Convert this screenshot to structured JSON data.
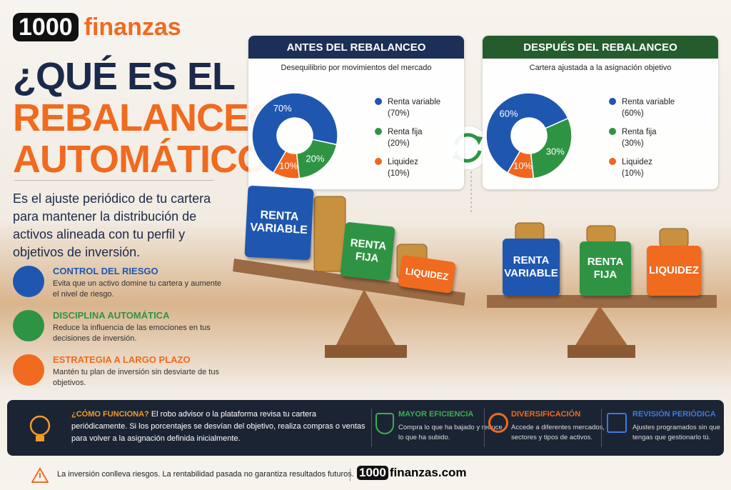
{
  "brand": {
    "number": "1000",
    "word": "finanzas"
  },
  "title": {
    "line1": "¿QUÉ ES EL",
    "line2": "REBALANCEO",
    "line3": "AUTOMÁTICO?"
  },
  "intro": "Es el ajuste periódico de tu cartera para mantener la distribución de activos alineada con tu perfil y objetivos de inversión.",
  "benefits": [
    {
      "title": "CONTROL DEL RIESGO",
      "text": "Evita que un activo domine tu cartera y aumente el nivel de riesgo."
    },
    {
      "title": "DISCIPLINA AUTOMÁTICA",
      "text": "Reduce la influencia de las emociones en tus decisiones de inversión."
    },
    {
      "title": "ESTRATEGIA A LARGO PLAZO",
      "text": "Mantén tu plan de inversión sin desviarte de tus objetivos."
    }
  ],
  "charts": [
    {
      "type": "pie",
      "title": "ANTES DEL REBALANCEO",
      "subtitle": "Desequilibrio por movimientos del mercado",
      "categories": [
        "Renta variable",
        "Renta fija",
        "Liquidez"
      ],
      "values": [
        70,
        20,
        10
      ],
      "value_labels": [
        "70%",
        "20%",
        "10%"
      ],
      "legend_value_labels": [
        "(70%)",
        "(20%)",
        "(10%)"
      ],
      "colors": [
        "#1f57b0",
        "#2e9444",
        "#f0661e"
      ],
      "header_color": "#1b2f57"
    },
    {
      "type": "pie",
      "title": "DESPUÉS DEL REBALANCEO",
      "subtitle": "Cartera ajustada a la asignación objetivo",
      "categories": [
        "Renta variable",
        "Renta fija",
        "Liquidez"
      ],
      "values": [
        60,
        30,
        10
      ],
      "value_labels": [
        "60%",
        "30%",
        "10%"
      ],
      "legend_value_labels": [
        "(60%)",
        "(30%)",
        "(10%)"
      ],
      "colors": [
        "#1f57b0",
        "#2e9444",
        "#f0661e"
      ],
      "header_color": "#245c2e"
    }
  ],
  "blocks": {
    "before": [
      "RENTA VARIABLE",
      "RENTA FIJA",
      "LIQUIDEZ"
    ],
    "after": [
      "RENTA VARIABLE",
      "RENTA FIJA",
      "LIQUIDEZ"
    ]
  },
  "how": {
    "title": "¿CÓMO FUNCIONA?",
    "text": "El robo advisor o la plataforma revisa tu cartera periódicamente. Si los porcentajes se desvían del objetivo, realiza compras o ventas para volver a la asignación definida inicialmente."
  },
  "features": [
    {
      "title": "MAYOR EFICIENCIA",
      "text": "Compra lo que ha bajado y reduce lo que ha subido."
    },
    {
      "title": "DIVERSIFICACIÓN",
      "text": "Accede a diferentes mercados, sectores y tipos de activos."
    },
    {
      "title": "REVISIÓN PERIÓDICA",
      "text": "Ajustes programados sin que tengas que gestionarlo tú."
    }
  ],
  "footer": {
    "disclaimer": "La inversión conlleva riesgos. La rentabilidad pasada no garantiza resultados futuros.",
    "site_number": "1000",
    "site_word": "finanzas.com"
  }
}
